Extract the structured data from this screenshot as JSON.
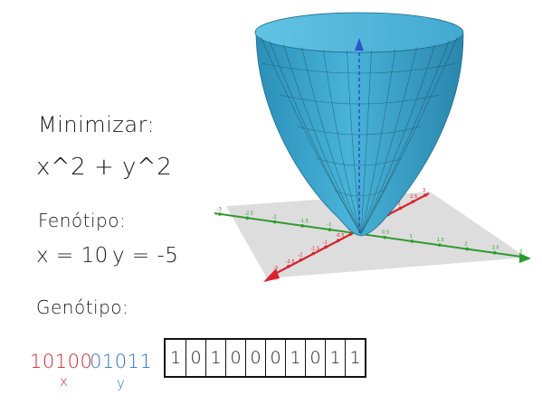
{
  "title": "Minimizar:",
  "objective": "x^2 + y^2",
  "phenotype": {
    "label": "Fenótipo:",
    "x_text": "x = 10",
    "y_text": "y = -5"
  },
  "genotype": {
    "label": "Genótipo:",
    "x_bits": "10100",
    "y_bits": "01011",
    "x_label": "x",
    "y_label": "y",
    "cells": [
      "1",
      "0",
      "1",
      "0",
      "0",
      "0",
      "1",
      "0",
      "1",
      "1"
    ]
  },
  "axis_ticks": {
    "x_axis": [
      "-3",
      "-2.5",
      "-2",
      "-1.5",
      "-1",
      "-0.5",
      "0",
      "0.5",
      "1",
      "1.5",
      "2",
      "2.5",
      "3"
    ],
    "y_axis": [
      "-3",
      "-2.5",
      "-2",
      "-1.5",
      "-1",
      "-0.5",
      "0.5",
      "1",
      "1.5",
      "2",
      "2.5",
      "3"
    ]
  },
  "colors": {
    "x_bits": "#d8232f",
    "y_bits": "#2e74c8",
    "surface": "#3aa0c8",
    "plane": "#dcdcdc",
    "axis_x": "#d8232f",
    "axis_y": "#2e9a2e",
    "axis_z": "#2d54c8"
  }
}
